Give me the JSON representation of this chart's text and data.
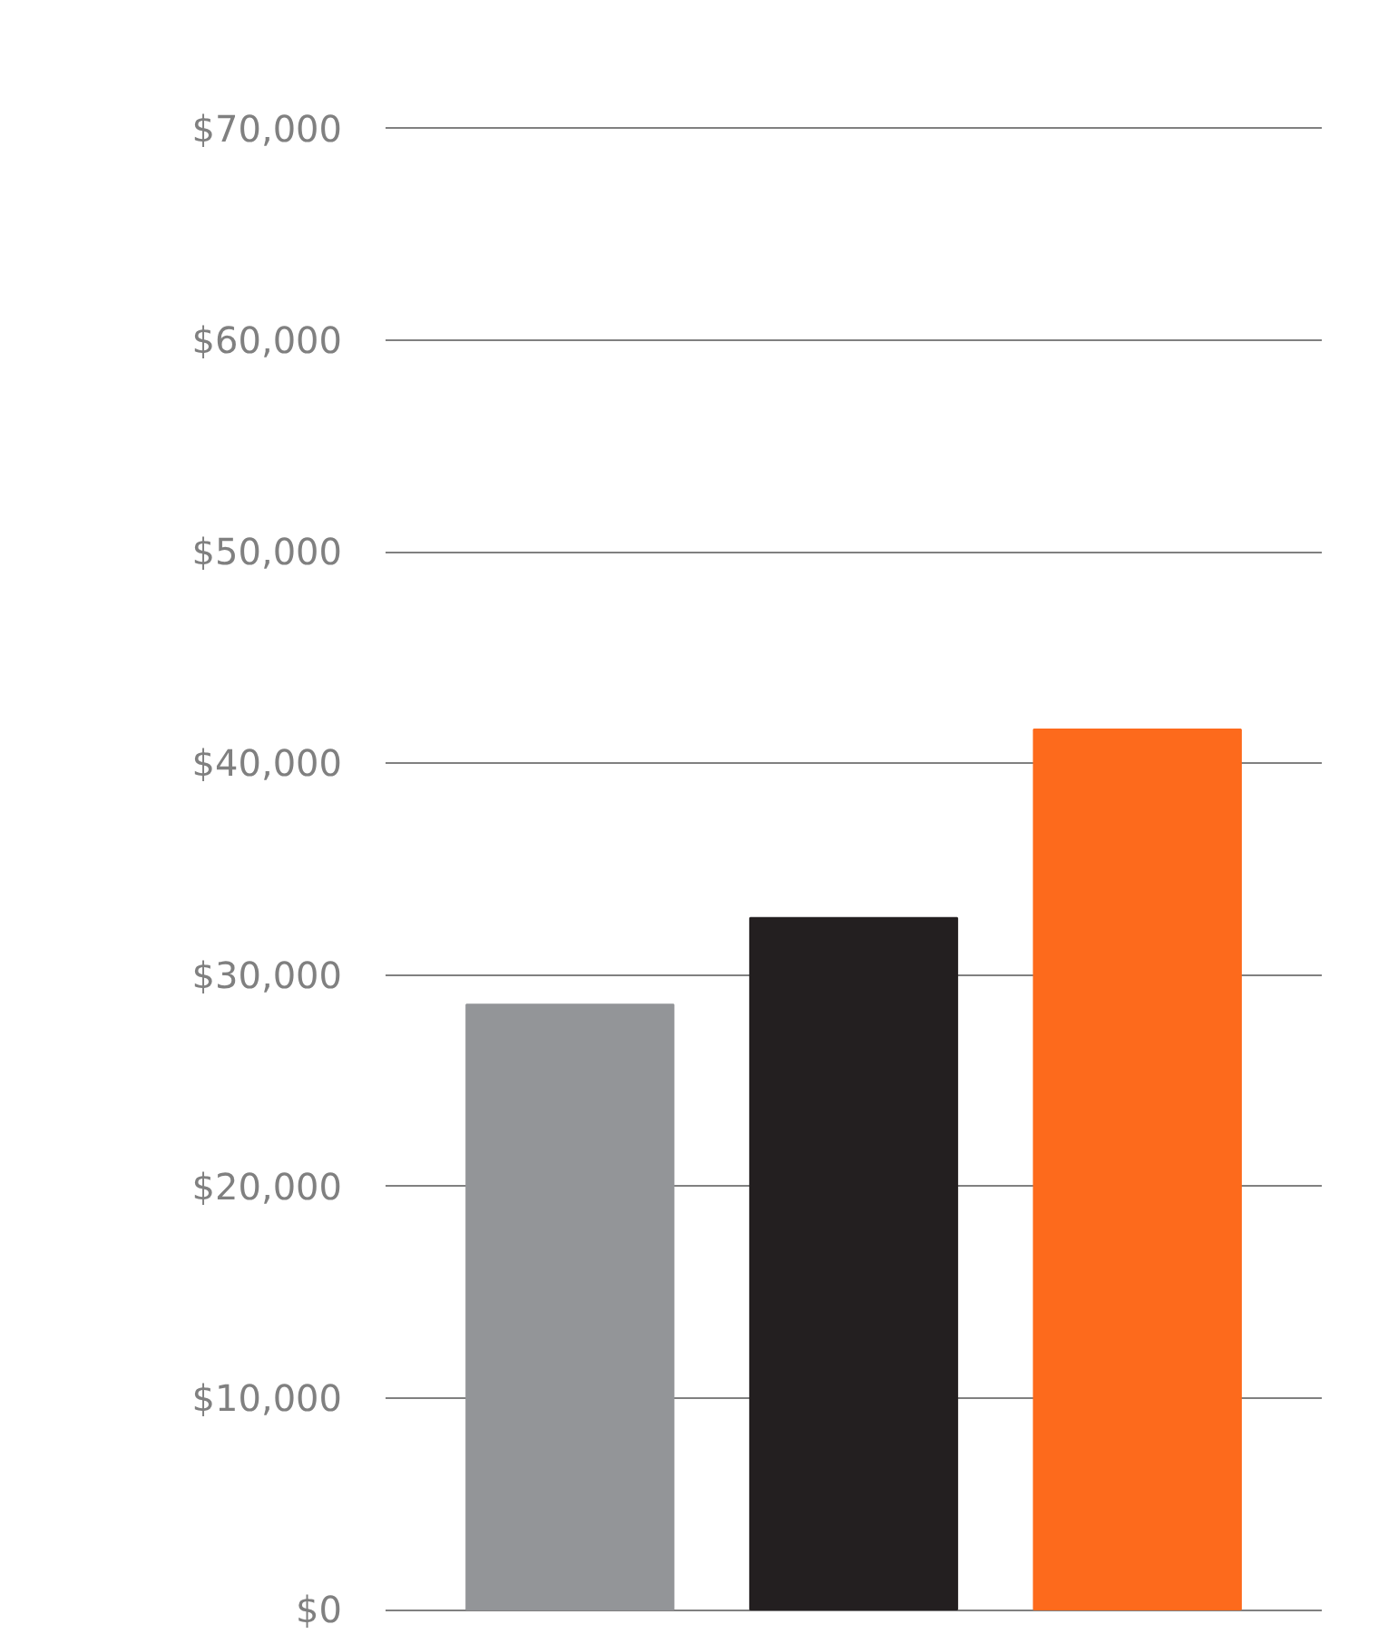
{
  "chart_data": {
    "type": "bar",
    "categories": [
      null,
      null,
      null
    ],
    "values": [
      28600,
      32700,
      41600
    ],
    "colors": [
      "#939598",
      "#231f20",
      "#fd6a1c"
    ],
    "ylim": [
      0,
      70000
    ],
    "yticks": [
      {
        "value": 0,
        "label": "$0"
      },
      {
        "value": 10000,
        "label": "$10,000"
      },
      {
        "value": 20000,
        "label": "$20,000"
      },
      {
        "value": 30000,
        "label": "$30,000"
      },
      {
        "value": 40000,
        "label": "$40,000"
      },
      {
        "value": 50000,
        "label": "$50,000"
      },
      {
        "value": 60000,
        "label": "$60,000"
      },
      {
        "value": 70000,
        "label": "$70,000"
      }
    ],
    "grid": "y",
    "tick_labels": "y"
  }
}
